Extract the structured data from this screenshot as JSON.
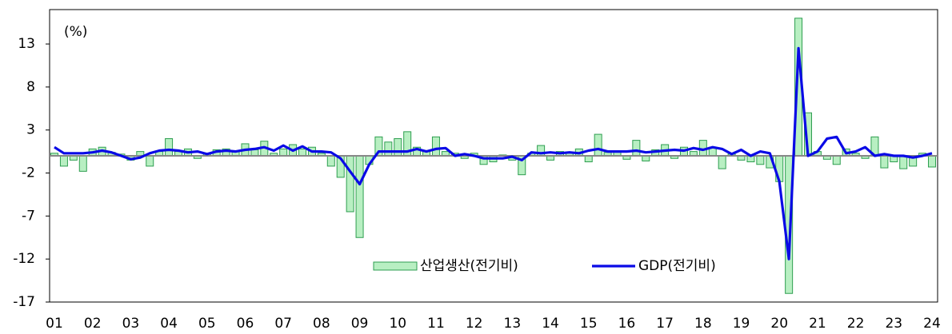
{
  "chart_data": {
    "type": "bar_line",
    "unit_label": "(%)",
    "categories": [
      "01",
      null,
      null,
      null,
      "02",
      null,
      null,
      null,
      "03",
      null,
      null,
      null,
      "04",
      null,
      null,
      null,
      "05",
      null,
      null,
      null,
      "06",
      null,
      null,
      null,
      "07",
      null,
      null,
      null,
      "08",
      null,
      null,
      null,
      "09",
      null,
      null,
      null,
      "10",
      null,
      null,
      null,
      "11",
      null,
      null,
      null,
      "12",
      null,
      null,
      null,
      "13",
      null,
      null,
      null,
      "14",
      null,
      null,
      null,
      "15",
      null,
      null,
      null,
      "16",
      null,
      null,
      null,
      "17",
      null,
      null,
      null,
      "18",
      null,
      null,
      null,
      "19",
      null,
      null,
      null,
      "20",
      null,
      null,
      null,
      "21",
      null,
      null,
      null,
      "22",
      null,
      null,
      null,
      "23",
      null,
      null,
      null,
      "24"
    ],
    "series": [
      {
        "name": "산업생산(전기비)",
        "kind": "bar",
        "color": "#b8efc2",
        "edge": "#2e9e50",
        "values": [
          0.3,
          -1.2,
          -0.5,
          -1.8,
          0.8,
          1.0,
          0.4,
          0.2,
          -0.5,
          0.5,
          -1.2,
          0.5,
          2.0,
          0.5,
          0.8,
          -0.3,
          0.3,
          0.7,
          0.8,
          0.6,
          1.4,
          0.7,
          1.7,
          0.3,
          0.8,
          1.3,
          0.8,
          1.0,
          0.3,
          -1.2,
          -2.5,
          -6.5,
          -9.5,
          -1.0,
          2.2,
          1.6,
          2.0,
          2.8,
          1.0,
          0.5,
          2.2,
          0.5,
          0.3,
          -0.3,
          0.3,
          -1.0,
          -0.7,
          0.1,
          -0.5,
          -2.2,
          0.3,
          1.2,
          -0.5,
          0.5,
          0.4,
          0.8,
          -0.7,
          2.5,
          0.4,
          0.5,
          -0.4,
          1.8,
          -0.6,
          0.7,
          1.3,
          -0.3,
          1.0,
          0.5,
          1.8,
          1.0,
          -1.5,
          0.2,
          -0.5,
          -0.7,
          -1.0,
          -1.4,
          -3.0,
          -16.0,
          16.0,
          5.0,
          0.5,
          -0.4,
          -1.0,
          0.8,
          0.3,
          -0.3,
          2.2,
          -1.4,
          -0.7,
          -1.5,
          -1.2,
          0.3,
          -1.3
        ]
      },
      {
        "name": "GDP(전기비)",
        "kind": "line",
        "color": "#0a0ae6",
        "values": [
          1.0,
          0.3,
          0.3,
          0.3,
          0.4,
          0.6,
          0.4,
          0.0,
          -0.4,
          -0.2,
          0.3,
          0.6,
          0.7,
          0.6,
          0.4,
          0.5,
          0.2,
          0.5,
          0.6,
          0.5,
          0.7,
          0.8,
          1.0,
          0.6,
          1.2,
          0.6,
          1.1,
          0.5,
          0.5,
          0.4,
          -0.3,
          -1.8,
          -3.3,
          -1.0,
          0.5,
          0.5,
          0.5,
          0.5,
          0.8,
          0.5,
          0.8,
          0.9,
          0.0,
          0.2,
          0.0,
          -0.3,
          -0.3,
          -0.3,
          -0.1,
          -0.5,
          0.4,
          0.3,
          0.4,
          0.3,
          0.4,
          0.3,
          0.6,
          0.8,
          0.5,
          0.5,
          0.5,
          0.6,
          0.4,
          0.5,
          0.6,
          0.7,
          0.6,
          0.9,
          0.7,
          1.0,
          0.8,
          0.2,
          0.7,
          0.0,
          0.5,
          0.3,
          -3.0,
          -12.0,
          12.5,
          0.0,
          0.5,
          2.0,
          2.2,
          0.3,
          0.5,
          1.0,
          0.0,
          0.2,
          0.0,
          0.0,
          -0.2,
          0.0,
          0.3
        ]
      }
    ],
    "ylim": [
      -17,
      17
    ],
    "yticks": [
      13,
      8,
      3,
      -2,
      -7,
      -12,
      -17
    ],
    "grid": false,
    "legend": "bottom-center"
  }
}
